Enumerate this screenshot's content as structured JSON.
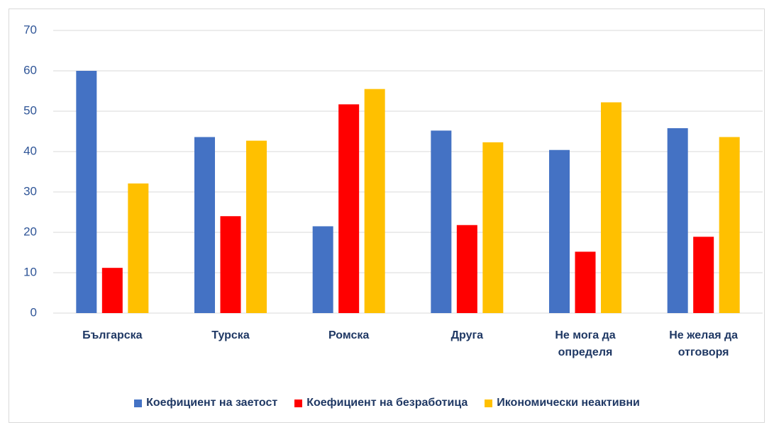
{
  "chart_data": {
    "type": "bar",
    "categories": [
      "Българска",
      "Турска",
      "Ромска",
      "Друга",
      "Не мога да определя",
      "Не желая да отговоря"
    ],
    "series": [
      {
        "name": "Коефициент на заетост",
        "color": "#4472c4",
        "values": [
          60,
          43.6,
          21.5,
          45.2,
          40.4,
          45.8
        ]
      },
      {
        "name": "Коефициент на безработица",
        "color": "#ff0000",
        "values": [
          11.2,
          24,
          51.7,
          21.8,
          15.2,
          18.9
        ]
      },
      {
        "name": "Икономически неактивни",
        "color": "#ffc000",
        "values": [
          32.1,
          42.7,
          55.5,
          42.3,
          52.2,
          43.6
        ]
      }
    ],
    "ylim": [
      0,
      70
    ],
    "yticks": [
      0,
      10,
      20,
      30,
      40,
      50,
      60,
      70
    ],
    "grid": true,
    "legend": "bottom"
  }
}
